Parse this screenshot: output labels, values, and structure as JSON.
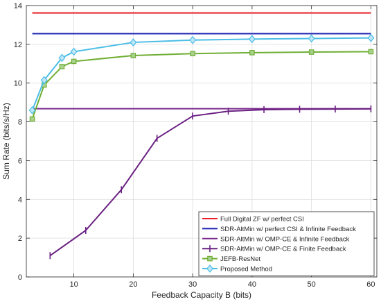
{
  "chart_data": {
    "type": "line",
    "xlabel": "Feedback Capacity B (bits)",
    "ylabel": "Sum Rate (bits/s/Hz)",
    "xlim": [
      2,
      61
    ],
    "ylim": [
      0,
      14
    ],
    "xticks": [
      10,
      20,
      30,
      40,
      50,
      60
    ],
    "yticks": [
      0,
      2,
      4,
      6,
      8,
      10,
      12,
      14
    ],
    "grid": true,
    "legend_position": "bottom-right",
    "series": [
      {
        "name": "Full Digital ZF w/ perfect CSI",
        "color": "#e8202a",
        "marker": "none",
        "x": [
          3,
          60
        ],
        "y": [
          13.62,
          13.62
        ]
      },
      {
        "name": "SDR-AltMin w/ perfect CSI & Infinite Feedback",
        "color": "#1f24b4",
        "marker": "none",
        "x": [
          3,
          60
        ],
        "y": [
          12.55,
          12.55
        ]
      },
      {
        "name": "SDR-AltMin w/ OMP-CE & Infinite Feedback",
        "color": "#7a2a8c",
        "marker": "none",
        "x": [
          3,
          60
        ],
        "y": [
          8.68,
          8.68
        ]
      },
      {
        "name": "SDR-AltMin w/ OMP-CE & Finite Feedback",
        "color": "#6a1f82",
        "marker": "vbar",
        "x": [
          6,
          12,
          18,
          24,
          30,
          36,
          42,
          48,
          54,
          60
        ],
        "y": [
          1.1,
          2.4,
          4.5,
          7.15,
          8.3,
          8.55,
          8.63,
          8.65,
          8.66,
          8.67
        ]
      },
      {
        "name": "JEFB-ResNet",
        "color": "#6fae34",
        "marker": "square",
        "x": [
          3,
          5,
          8,
          10,
          20,
          30,
          40,
          50,
          60
        ],
        "y": [
          8.15,
          9.9,
          10.85,
          11.12,
          11.42,
          11.52,
          11.57,
          11.6,
          11.62
        ]
      },
      {
        "name": "Proposed Method",
        "color": "#4bbde6",
        "marker": "diamond",
        "x": [
          3,
          5,
          8,
          10,
          20,
          30,
          40,
          50,
          60
        ],
        "y": [
          8.6,
          10.15,
          11.3,
          11.62,
          12.1,
          12.22,
          12.27,
          12.3,
          12.33
        ]
      }
    ]
  }
}
